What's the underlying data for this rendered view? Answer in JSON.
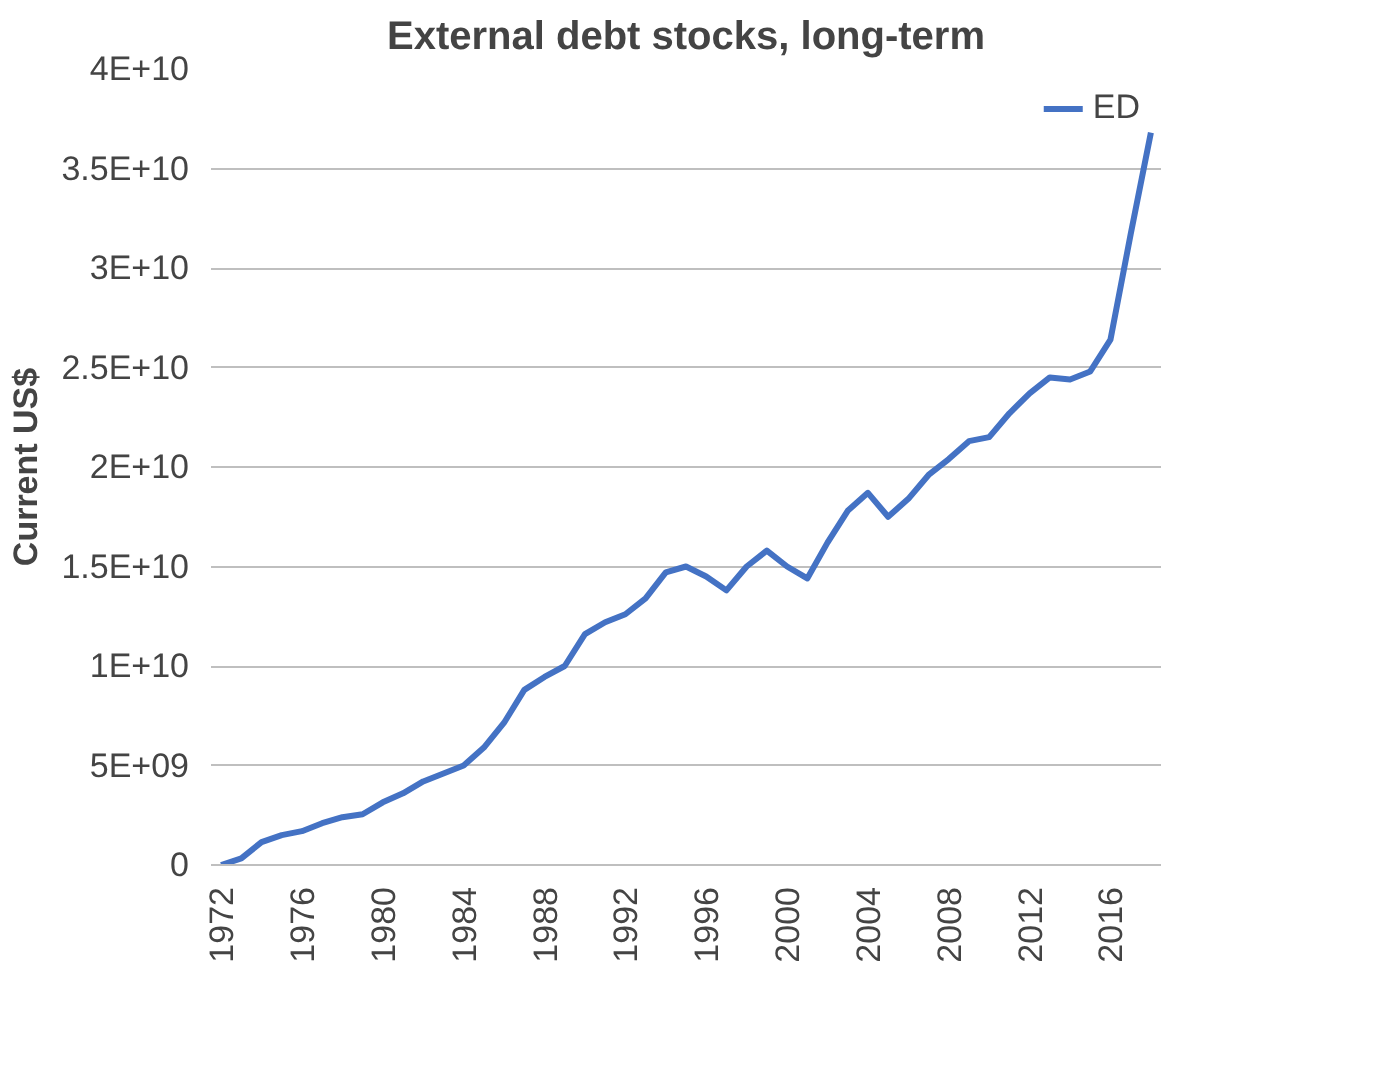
{
  "chart_data": {
    "type": "line",
    "title": "External debt stocks, long-term",
    "ylabel": "Current US$",
    "categories": [
      "1972",
      null,
      null,
      null,
      "1976",
      null,
      null,
      null,
      "1980",
      null,
      null,
      null,
      "1984",
      null,
      null,
      null,
      "1988",
      null,
      null,
      null,
      "1992",
      null,
      null,
      null,
      "1996",
      null,
      null,
      null,
      "2000",
      null,
      null,
      null,
      "2004",
      null,
      null,
      null,
      "2008",
      null,
      null,
      null,
      "2012",
      null,
      null,
      null,
      "2016",
      null,
      null
    ],
    "series": [
      {
        "name": "ED",
        "color": "#4472c4",
        "values": [
          0,
          330000000.0,
          1150000000.0,
          1500000000.0,
          1700000000.0,
          2100000000.0,
          2400000000.0,
          2550000000.0,
          3150000000.0,
          3600000000.0,
          4200000000.0,
          4600000000.0,
          5000000000.0,
          5900000000.0,
          7150000000.0,
          8800000000.0,
          9450000000.0,
          10000000000.0,
          11600000000.0,
          12200000000.0,
          12600000000.0,
          13400000000.0,
          14700000000.0,
          15000000000.0,
          14500000000.0,
          13800000000.0,
          15000000000.0,
          15800000000.0,
          15000000000.0,
          14400000000.0,
          16200000000.0,
          17800000000.0,
          18700000000.0,
          17500000000.0,
          18400000000.0,
          19600000000.0,
          20400000000.0,
          21300000000.0,
          21500000000.0,
          22700000000.0,
          23700000000.0,
          24500000000.0,
          24400000000.0,
          24800000000.0,
          26400000000.0,
          31700000000.0,
          36800000000.0
        ]
      }
    ],
    "ylim": [
      0,
      40000000000.0
    ],
    "yticks": [
      0,
      {
        "value": 5000000000.0,
        "label": "5E+09"
      },
      {
        "value": 10000000000.0,
        "label": "1E+10"
      },
      {
        "value": 15000000000.0,
        "label": "1.5E+10"
      },
      {
        "value": 20000000000.0,
        "label": "2E+10"
      },
      {
        "value": 25000000000.0,
        "label": "2.5E+10"
      },
      {
        "value": 30000000000.0,
        "label": "3E+10"
      },
      {
        "value": 35000000000.0,
        "label": "3.5E+10"
      },
      {
        "value": 40000000000.0,
        "label": "4E+10"
      }
    ],
    "grid": "y",
    "legend": "top right",
    "marker": "none",
    "line_style": "solid"
  }
}
